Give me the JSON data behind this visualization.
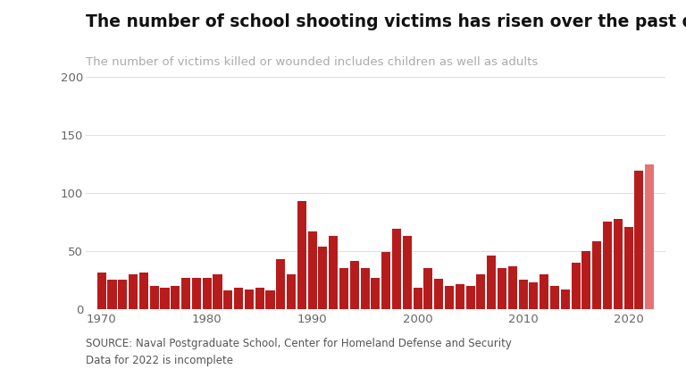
{
  "title": "The number of school shooting victims has risen over the past decade",
  "subtitle": "The number of victims killed or wounded includes children as well as adults",
  "source_text": "SOURCE: Naval Postgraduate School, Center for Homeland Defense and Security\nData for 2022 is incomplete",
  "years": [
    1970,
    1971,
    1972,
    1973,
    1974,
    1975,
    1976,
    1977,
    1978,
    1979,
    1980,
    1981,
    1982,
    1983,
    1984,
    1985,
    1986,
    1987,
    1988,
    1989,
    1990,
    1991,
    1992,
    1993,
    1994,
    1995,
    1996,
    1997,
    1998,
    1999,
    2000,
    2001,
    2002,
    2003,
    2004,
    2005,
    2006,
    2007,
    2008,
    2009,
    2010,
    2011,
    2012,
    2013,
    2014,
    2015,
    2016,
    2017,
    2018,
    2019,
    2020,
    2021,
    2022
  ],
  "values": [
    31,
    25,
    25,
    30,
    31,
    20,
    18,
    20,
    27,
    27,
    27,
    30,
    16,
    18,
    17,
    18,
    16,
    43,
    30,
    93,
    67,
    54,
    63,
    35,
    41,
    35,
    27,
    49,
    69,
    63,
    18,
    35,
    26,
    20,
    21,
    20,
    30,
    46,
    35,
    37,
    25,
    23,
    30,
    20,
    17,
    40,
    50,
    58,
    75,
    78,
    71,
    119,
    125
  ],
  "incomplete_year": 2022,
  "bar_color": "#b71c1c",
  "bar_color_incomplete": "#e57373",
  "background_color": "#ffffff",
  "grid_color": "#e0e0e0",
  "ylim": [
    0,
    200
  ],
  "yticks": [
    0,
    50,
    100,
    150,
    200
  ],
  "xticks": [
    1970,
    1980,
    1990,
    2000,
    2010,
    2020
  ],
  "title_fontsize": 13.5,
  "subtitle_fontsize": 9.5,
  "source_fontsize": 8.5
}
